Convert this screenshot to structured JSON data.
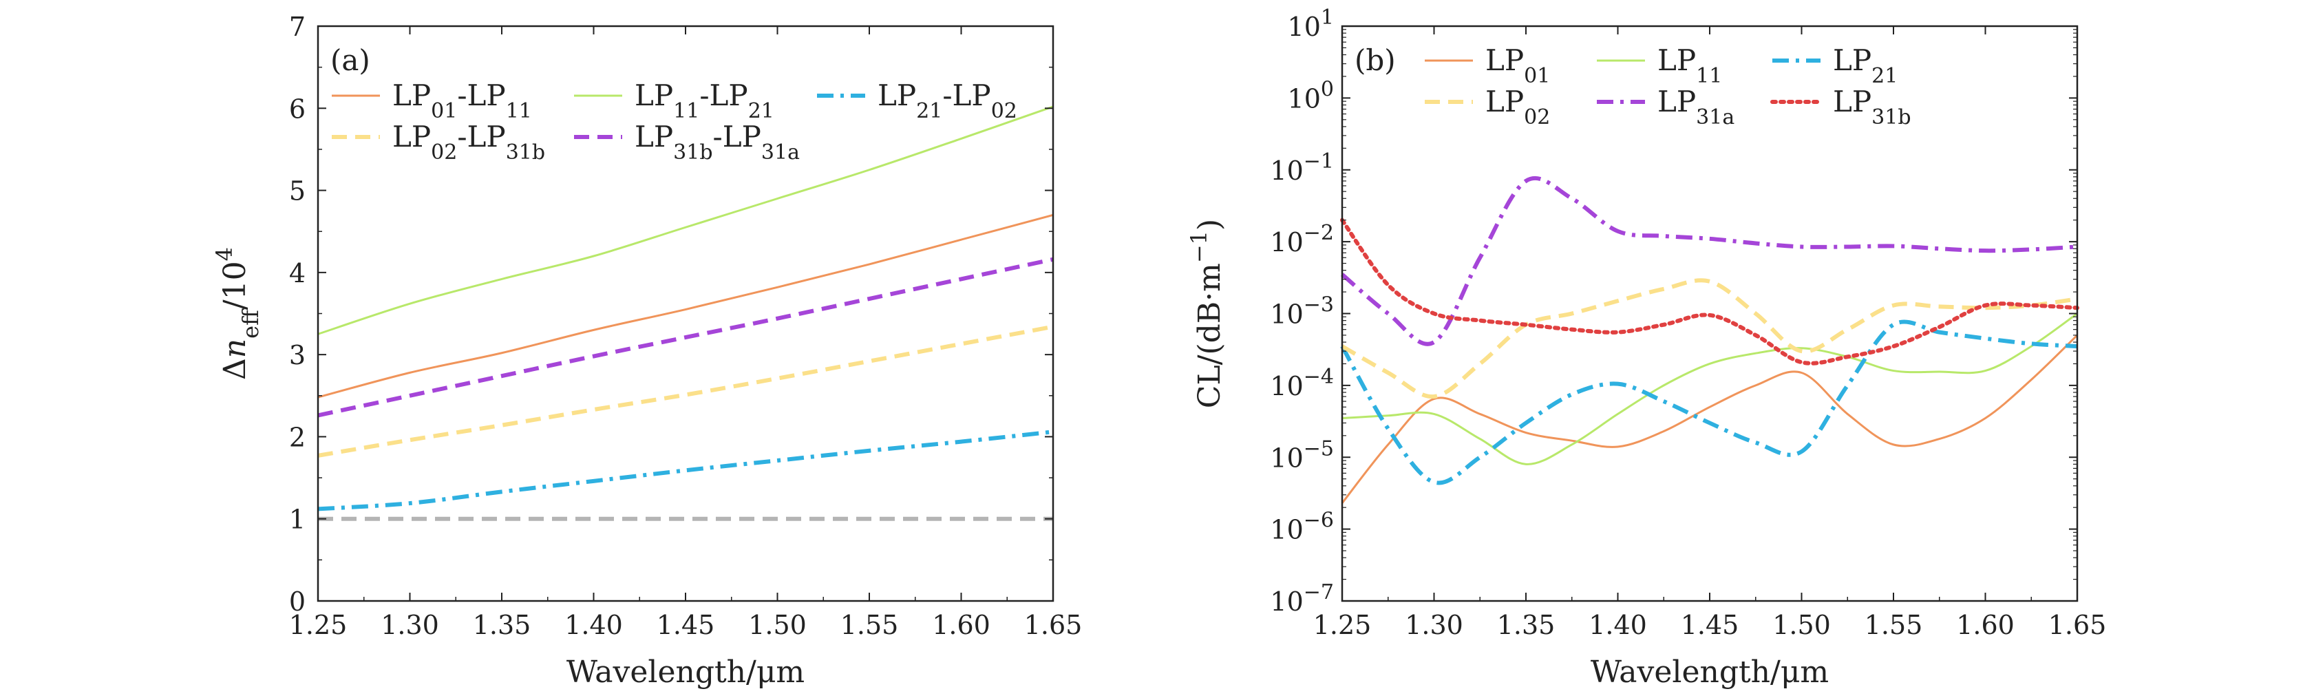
{
  "chart_data": [
    {
      "type": "line",
      "panel_label": "(a)",
      "xlabel": "Wavelength/μm",
      "ylabel": "Δn_eff/10^4",
      "ylabel_parts": {
        "main": "Δ",
        "n": "n",
        "sub": "eff",
        "den": "/10",
        "exp": "4"
      },
      "xlim": [
        1.25,
        1.65
      ],
      "ylim": [
        0,
        7
      ],
      "x_ticks": [
        "1.25",
        "1.30",
        "1.35",
        "1.40",
        "1.45",
        "1.50",
        "1.55",
        "1.60",
        "1.65"
      ],
      "y_ticks": [
        "0",
        "1",
        "2",
        "3",
        "4",
        "5",
        "6",
        "7"
      ],
      "legend_position": "top-left",
      "series": [
        {
          "name": "LP01-LP11",
          "legend": [
            [
              "LP",
              ""
            ],
            [
              "01",
              "sub"
            ],
            [
              "-LP",
              ""
            ],
            [
              "11",
              "sub"
            ]
          ],
          "color": "#f0945a",
          "dash": "solid",
          "x": [
            1.25,
            1.3,
            1.35,
            1.4,
            1.45,
            1.5,
            1.55,
            1.6,
            1.65
          ],
          "y": [
            2.48,
            2.78,
            3.02,
            3.3,
            3.55,
            3.82,
            4.1,
            4.4,
            4.7
          ]
        },
        {
          "name": "LP11-LP21",
          "legend": [
            [
              "LP",
              ""
            ],
            [
              "11",
              "sub"
            ],
            [
              "-LP",
              ""
            ],
            [
              "21",
              "sub"
            ]
          ],
          "color": "#b8e86a",
          "dash": "solid",
          "x": [
            1.25,
            1.3,
            1.35,
            1.4,
            1.45,
            1.5,
            1.55,
            1.6,
            1.65
          ],
          "y": [
            3.25,
            3.62,
            3.92,
            4.2,
            4.55,
            4.9,
            5.25,
            5.63,
            6.02
          ]
        },
        {
          "name": "LP21-LP02",
          "legend": [
            [
              "LP",
              ""
            ],
            [
              "21",
              "sub"
            ],
            [
              "-LP",
              ""
            ],
            [
              "02",
              "sub"
            ]
          ],
          "color": "#2eb0e0",
          "dash": "dashdot",
          "x": [
            1.25,
            1.3,
            1.35,
            1.4,
            1.45,
            1.5,
            1.55,
            1.6,
            1.65
          ],
          "y": [
            1.12,
            1.19,
            1.33,
            1.46,
            1.59,
            1.71,
            1.83,
            1.94,
            2.06
          ]
        },
        {
          "name": "LP02-LP31b",
          "legend": [
            [
              "LP",
              ""
            ],
            [
              "02",
              "sub"
            ],
            [
              "-LP",
              ""
            ],
            [
              "31b",
              "sub"
            ]
          ],
          "color": "#fbe08a",
          "dash": "dashed",
          "x": [
            1.25,
            1.3,
            1.35,
            1.4,
            1.45,
            1.5,
            1.55,
            1.6,
            1.65
          ],
          "y": [
            1.77,
            1.96,
            2.14,
            2.33,
            2.51,
            2.71,
            2.92,
            3.13,
            3.34
          ]
        },
        {
          "name": "LP31b-LP31a",
          "legend": [
            [
              "LP",
              ""
            ],
            [
              "31b",
              "sub"
            ],
            [
              "-LP",
              ""
            ],
            [
              "31a",
              "sub"
            ]
          ],
          "color": "#a545d8",
          "dash": "dashed",
          "x": [
            1.25,
            1.3,
            1.35,
            1.4,
            1.45,
            1.5,
            1.55,
            1.6,
            1.65
          ],
          "y": [
            2.26,
            2.5,
            2.74,
            2.98,
            3.21,
            3.44,
            3.68,
            3.92,
            4.16
          ]
        },
        {
          "name": "",
          "legend": null,
          "color": "#b4b4b4",
          "dash": "dashed",
          "x": [
            1.25,
            1.65
          ],
          "y": [
            1.0,
            1.0
          ]
        }
      ]
    },
    {
      "type": "line",
      "panel_label": "(b)",
      "xlabel": "Wavelength/μm",
      "ylabel": "CL/(dB·m^−1)",
      "ylabel_parts": {
        "main": "CL/(dB·m",
        "exp": "−1",
        "close": ")"
      },
      "xlim": [
        1.25,
        1.65
      ],
      "ylim_log10": [
        -7,
        1
      ],
      "yscale": "log",
      "x_ticks": [
        "1.25",
        "1.30",
        "1.35",
        "1.40",
        "1.45",
        "1.50",
        "1.55",
        "1.60",
        "1.65"
      ],
      "y_ticks": [
        {
          "base": "10",
          "exp": "1"
        },
        {
          "base": "10",
          "exp": "0"
        },
        {
          "base": "10",
          "exp": "−1"
        },
        {
          "base": "10",
          "exp": "−2"
        },
        {
          "base": "10",
          "exp": "−3"
        },
        {
          "base": "10",
          "exp": "−4"
        },
        {
          "base": "10",
          "exp": "−5"
        },
        {
          "base": "10",
          "exp": "−6"
        },
        {
          "base": "10",
          "exp": "−7"
        }
      ],
      "legend_position": "top",
      "series": [
        {
          "name": "LP01",
          "legend": [
            [
              "LP",
              ""
            ],
            [
              "01",
              "sub"
            ]
          ],
          "color": "#f0945a",
          "dash": "solid",
          "x": [
            1.25,
            1.275,
            1.3,
            1.325,
            1.35,
            1.375,
            1.4,
            1.425,
            1.45,
            1.475,
            1.5,
            1.525,
            1.55,
            1.575,
            1.6,
            1.625,
            1.65
          ],
          "y": [
            2.3e-06,
            1.5e-05,
            6.5e-05,
            4e-05,
            2.2e-05,
            1.7e-05,
            1.4e-05,
            2.3e-05,
            5e-05,
            0.0001,
            0.00015,
            4e-05,
            1.5e-05,
            1.8e-05,
            3.5e-05,
            0.00012,
            0.0005
          ]
        },
        {
          "name": "LP11",
          "legend": [
            [
              "LP",
              ""
            ],
            [
              "11",
              "sub"
            ]
          ],
          "color": "#b8e86a",
          "dash": "solid",
          "x": [
            1.25,
            1.275,
            1.3,
            1.325,
            1.35,
            1.375,
            1.4,
            1.425,
            1.45,
            1.475,
            1.5,
            1.525,
            1.55,
            1.575,
            1.6,
            1.625,
            1.65
          ],
          "y": [
            3.5e-05,
            3.8e-05,
            4e-05,
            1.8e-05,
            8e-06,
            1.5e-05,
            4e-05,
            0.0001,
            0.0002,
            0.00028,
            0.00033,
            0.00025,
            0.00016,
            0.000155,
            0.00016,
            0.00035,
            0.001
          ]
        },
        {
          "name": "LP21",
          "legend": [
            [
              "LP",
              ""
            ],
            [
              "21",
              "sub"
            ]
          ],
          "color": "#2eb0e0",
          "dash": "dashdot",
          "x": [
            1.25,
            1.275,
            1.3,
            1.325,
            1.35,
            1.375,
            1.4,
            1.425,
            1.45,
            1.475,
            1.5,
            1.525,
            1.55,
            1.575,
            1.6,
            1.625,
            1.65
          ],
          "y": [
            0.00035,
            2.5e-05,
            4.5e-06,
            1e-05,
            3e-05,
            7.5e-05,
            0.000105,
            6e-05,
            3e-05,
            1.6e-05,
            1.2e-05,
            0.0001,
            0.0007,
            0.00055,
            0.00045,
            0.00038,
            0.00035
          ]
        },
        {
          "name": "LP02",
          "legend": [
            [
              "LP",
              ""
            ],
            [
              "02",
              "sub"
            ]
          ],
          "color": "#fbe08a",
          "dash": "dashed",
          "x": [
            1.25,
            1.275,
            1.3,
            1.325,
            1.35,
            1.375,
            1.4,
            1.425,
            1.45,
            1.475,
            1.5,
            1.525,
            1.55,
            1.575,
            1.6,
            1.625,
            1.65
          ],
          "y": [
            0.00035,
            0.00015,
            7e-05,
            0.0002,
            0.0007,
            0.001,
            0.0015,
            0.0022,
            0.0028,
            0.001,
            0.0003,
            0.0006,
            0.0013,
            0.00125,
            0.0012,
            0.0013,
            0.0016
          ]
        },
        {
          "name": "LP31a",
          "legend": [
            [
              "LP",
              ""
            ],
            [
              "31a",
              "sub"
            ]
          ],
          "color": "#a545d8",
          "dash": "dashdot",
          "x": [
            1.25,
            1.275,
            1.3,
            1.325,
            1.35,
            1.375,
            1.4,
            1.425,
            1.45,
            1.475,
            1.5,
            1.525,
            1.55,
            1.575,
            1.6,
            1.625,
            1.65
          ],
          "y": [
            0.0035,
            0.001,
            0.0004,
            0.006,
            0.07,
            0.04,
            0.014,
            0.012,
            0.011,
            0.0095,
            0.0085,
            0.0085,
            0.0087,
            0.008,
            0.0075,
            0.0078,
            0.0085
          ]
        },
        {
          "name": "LP31b",
          "legend": [
            [
              "LP",
              ""
            ],
            [
              "31b",
              "sub"
            ]
          ],
          "color": "#e04040",
          "dash": "dotted",
          "x": [
            1.25,
            1.275,
            1.3,
            1.325,
            1.35,
            1.375,
            1.4,
            1.425,
            1.45,
            1.475,
            1.5,
            1.525,
            1.55,
            1.575,
            1.6,
            1.625,
            1.65
          ],
          "y": [
            0.02,
            0.0025,
            0.001,
            0.0008,
            0.0007,
            0.0006,
            0.00055,
            0.0007,
            0.00095,
            0.0005,
            0.00021,
            0.00025,
            0.00035,
            0.00065,
            0.0013,
            0.0013,
            0.0012
          ]
        }
      ]
    }
  ]
}
